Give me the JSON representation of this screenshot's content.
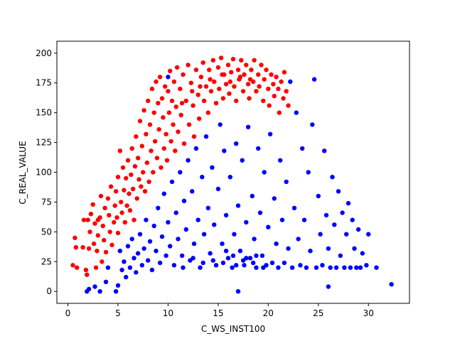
{
  "chart_data": {
    "type": "scatter",
    "title": "",
    "xlabel": "C_WS_INST100",
    "ylabel": "C_REAL_VALUE",
    "xlim": [
      -1.1,
      34.1
    ],
    "ylim": [
      -10,
      210
    ],
    "xticks": [
      0,
      5,
      10,
      15,
      20,
      25,
      30
    ],
    "yticks": [
      0,
      25,
      50,
      75,
      100,
      125,
      150,
      175,
      200
    ],
    "grid": false,
    "legend": "none",
    "series": [
      {
        "color": "#ff0000",
        "points": [
          [
            0.5,
            22
          ],
          [
            0.7,
            45
          ],
          [
            0.8,
            37
          ],
          [
            0.9,
            20
          ],
          [
            1.5,
            37
          ],
          [
            1.6,
            60
          ],
          [
            1.8,
            18
          ],
          [
            1.9,
            14
          ],
          [
            2.0,
            60
          ],
          [
            2.1,
            36
          ],
          [
            2.2,
            50
          ],
          [
            2.3,
            65
          ],
          [
            2.5,
            73
          ],
          [
            2.6,
            40
          ],
          [
            2.7,
            57
          ],
          [
            2.8,
            20
          ],
          [
            2.9,
            34
          ],
          [
            3.0,
            60
          ],
          [
            3.0,
            47
          ],
          [
            3.2,
            62
          ],
          [
            3.3,
            80
          ],
          [
            3.4,
            25
          ],
          [
            3.5,
            55
          ],
          [
            3.6,
            43
          ],
          [
            3.7,
            70
          ],
          [
            3.8,
            33
          ],
          [
            4.0,
            78
          ],
          [
            4.1,
            64
          ],
          [
            4.2,
            50
          ],
          [
            4.3,
            88
          ],
          [
            4.4,
            39
          ],
          [
            4.6,
            58
          ],
          [
            4.7,
            72
          ],
          [
            4.8,
            84
          ],
          [
            4.9,
            62
          ],
          [
            5.0,
            96
          ],
          [
            5.0,
            49
          ],
          [
            5.2,
            118
          ],
          [
            5.3,
            75
          ],
          [
            5.4,
            66
          ],
          [
            5.5,
            104
          ],
          [
            5.6,
            85
          ],
          [
            5.7,
            58
          ],
          [
            5.8,
            95
          ],
          [
            5.9,
            72
          ],
          [
            6.0,
            110
          ],
          [
            6.1,
            82
          ],
          [
            6.2,
            68
          ],
          [
            6.3,
            98
          ],
          [
            6.4,
            120
          ],
          [
            6.5,
            86
          ],
          [
            6.6,
            60
          ],
          [
            6.7,
            105
          ],
          [
            6.8,
            130
          ],
          [
            6.9,
            78
          ],
          [
            7.0,
            112
          ],
          [
            7.1,
            94
          ],
          [
            7.2,
            143
          ],
          [
            7.3,
            88
          ],
          [
            7.4,
            122
          ],
          [
            7.5,
            100
          ],
          [
            7.6,
            152
          ],
          [
            7.7,
            84
          ],
          [
            7.8,
            132
          ],
          [
            7.9,
            108
          ],
          [
            8.0,
            160
          ],
          [
            8.1,
            92
          ],
          [
            8.2,
            140
          ],
          [
            8.3,
            118
          ],
          [
            8.4,
            170
          ],
          [
            8.5,
            100
          ],
          [
            8.6,
            150
          ],
          [
            8.7,
            126
          ],
          [
            8.8,
            176
          ],
          [
            8.9,
            112
          ],
          [
            9.0,
            158
          ],
          [
            9.1,
            136
          ],
          [
            9.2,
            180
          ],
          [
            9.3,
            104
          ],
          [
            9.4,
            162
          ],
          [
            9.5,
            146
          ],
          [
            9.6,
            120
          ],
          [
            9.7,
            172
          ],
          [
            9.8,
            132
          ],
          [
            9.9,
            110
          ],
          [
            10.0,
            168
          ],
          [
            10.1,
            150
          ],
          [
            10.2,
            185
          ],
          [
            10.3,
            126
          ],
          [
            10.4,
            160
          ],
          [
            10.5,
            140
          ],
          [
            10.6,
            176
          ],
          [
            10.7,
            118
          ],
          [
            10.8,
            155
          ],
          [
            10.9,
            188
          ],
          [
            11.0,
            134
          ],
          [
            11.2,
            170
          ],
          [
            11.3,
            148
          ],
          [
            11.5,
            182
          ],
          [
            11.6,
            124
          ],
          [
            11.8,
            160
          ],
          [
            12.0,
            190
          ],
          [
            12.1,
            140
          ],
          [
            12.3,
            175
          ],
          [
            12.5,
            156
          ],
          [
            12.6,
            130
          ],
          [
            12.8,
            186
          ],
          [
            13.0,
            165
          ],
          [
            13.1,
            145
          ],
          [
            13.3,
            180
          ],
          [
            13.5,
            192
          ],
          [
            13.6,
            160
          ],
          [
            13.8,
            172
          ],
          [
            14.0,
            150
          ],
          [
            14.1,
            186
          ],
          [
            14.3,
            168
          ],
          [
            14.5,
            194
          ],
          [
            14.6,
            176
          ],
          [
            14.8,
            158
          ],
          [
            15.0,
            188
          ],
          [
            15.1,
            170
          ],
          [
            15.3,
            196
          ],
          [
            15.5,
            162
          ],
          [
            15.6,
            182
          ],
          [
            15.8,
            174
          ],
          [
            16.0,
            190
          ],
          [
            16.1,
            166
          ],
          [
            16.3,
            184
          ],
          [
            16.5,
            195
          ],
          [
            16.6,
            172
          ],
          [
            16.8,
            160
          ],
          [
            17.0,
            186
          ],
          [
            17.1,
            178
          ],
          [
            17.3,
            194
          ],
          [
            17.5,
            168
          ],
          [
            17.6,
            182
          ],
          [
            17.8,
            190
          ],
          [
            18.0,
            174
          ],
          [
            18.1,
            162
          ],
          [
            18.3,
            186
          ],
          [
            18.5,
            176
          ],
          [
            18.6,
            194
          ],
          [
            18.8,
            168
          ],
          [
            19.0,
            182
          ],
          [
            19.1,
            172
          ],
          [
            19.3,
            190
          ],
          [
            19.5,
            160
          ],
          [
            19.6,
            178
          ],
          [
            19.8,
            186
          ],
          [
            20.0,
            170
          ],
          [
            20.1,
            156
          ],
          [
            20.3,
            182
          ],
          [
            20.5,
            174
          ],
          [
            20.6,
            164
          ],
          [
            20.8,
            180
          ],
          [
            21.0,
            170
          ],
          [
            21.1,
            150
          ],
          [
            21.3,
            176
          ],
          [
            21.5,
            162
          ],
          [
            21.6,
            184
          ],
          [
            21.8,
            168
          ],
          [
            22.0,
            156
          ],
          [
            14.2,
            178
          ],
          [
            15.4,
            182
          ],
          [
            16.2,
            176
          ],
          [
            17.2,
            180
          ],
          [
            18.2,
            178
          ],
          [
            12.4,
            168
          ],
          [
            13.2,
            172
          ],
          [
            11.4,
            158
          ]
        ]
      },
      {
        "color": "#0000ff",
        "points": [
          [
            1.9,
            0
          ],
          [
            2.1,
            2
          ],
          [
            2.7,
            4
          ],
          [
            3.2,
            0
          ],
          [
            3.8,
            8
          ],
          [
            4.0,
            20
          ],
          [
            4.8,
            0
          ],
          [
            5.0,
            5
          ],
          [
            5.2,
            34
          ],
          [
            5.4,
            18
          ],
          [
            5.6,
            25
          ],
          [
            5.8,
            12
          ],
          [
            6.0,
            38
          ],
          [
            6.2,
            20
          ],
          [
            6.4,
            44
          ],
          [
            6.6,
            28
          ],
          [
            6.8,
            16
          ],
          [
            7.0,
            32
          ],
          [
            7.2,
            48
          ],
          [
            7.4,
            22
          ],
          [
            7.6,
            36
          ],
          [
            7.8,
            60
          ],
          [
            8.0,
            26
          ],
          [
            8.2,
            42
          ],
          [
            8.4,
            18
          ],
          [
            8.6,
            55
          ],
          [
            8.8,
            34
          ],
          [
            9.0,
            70
          ],
          [
            9.2,
            24
          ],
          [
            9.4,
            46
          ],
          [
            9.6,
            82
          ],
          [
            9.8,
            30
          ],
          [
            10.0,
            180
          ],
          [
            10.0,
            58
          ],
          [
            10.2,
            38
          ],
          [
            10.4,
            92
          ],
          [
            10.6,
            22
          ],
          [
            10.8,
            66
          ],
          [
            11.0,
            44
          ],
          [
            11.2,
            100
          ],
          [
            11.4,
            30
          ],
          [
            11.6,
            76
          ],
          [
            11.8,
            52
          ],
          [
            12.0,
            110
          ],
          [
            12.2,
            26
          ],
          [
            12.4,
            84
          ],
          [
            12.6,
            40
          ],
          [
            12.8,
            120
          ],
          [
            13.0,
            60
          ],
          [
            13.2,
            20
          ],
          [
            13.4,
            96
          ],
          [
            13.6,
            48
          ],
          [
            13.8,
            130
          ],
          [
            14.0,
            70
          ],
          [
            14.2,
            32
          ],
          [
            14.4,
            104
          ],
          [
            14.6,
            56
          ],
          [
            14.8,
            22
          ],
          [
            15.0,
            86
          ],
          [
            15.2,
            140
          ],
          [
            15.4,
            40
          ],
          [
            15.6,
            118
          ],
          [
            15.8,
            64
          ],
          [
            16.0,
            28
          ],
          [
            16.2,
            96
          ],
          [
            16.4,
            20
          ],
          [
            16.6,
            48
          ],
          [
            16.8,
            124
          ],
          [
            17.0,
            0
          ],
          [
            17.0,
            72
          ],
          [
            17.2,
            34
          ],
          [
            17.4,
            110
          ],
          [
            17.6,
            22
          ],
          [
            17.8,
            58
          ],
          [
            18.0,
            138
          ],
          [
            18.2,
            28
          ],
          [
            18.4,
            80
          ],
          [
            18.6,
            44
          ],
          [
            18.8,
            20
          ],
          [
            19.0,
            120
          ],
          [
            19.2,
            66
          ],
          [
            19.4,
            30
          ],
          [
            19.6,
            100
          ],
          [
            19.8,
            22
          ],
          [
            20.0,
            54
          ],
          [
            20.2,
            132
          ],
          [
            20.4,
            24
          ],
          [
            20.6,
            78
          ],
          [
            20.8,
            40
          ],
          [
            21.0,
            20
          ],
          [
            21.2,
            110
          ],
          [
            21.4,
            60
          ],
          [
            21.6,
            24
          ],
          [
            21.8,
            92
          ],
          [
            22.0,
            36
          ],
          [
            22.2,
            176
          ],
          [
            22.4,
            20
          ],
          [
            22.6,
            70
          ],
          [
            22.8,
            150
          ],
          [
            23.0,
            44
          ],
          [
            23.2,
            22
          ],
          [
            23.4,
            120
          ],
          [
            23.6,
            60
          ],
          [
            23.8,
            20
          ],
          [
            24.0,
            100
          ],
          [
            24.2,
            34
          ],
          [
            24.4,
            140
          ],
          [
            24.6,
            178
          ],
          [
            24.8,
            20
          ],
          [
            25.0,
            80
          ],
          [
            25.2,
            48
          ],
          [
            25.4,
            22
          ],
          [
            25.6,
            118
          ],
          [
            25.8,
            64
          ],
          [
            26.0,
            4
          ],
          [
            26.0,
            36
          ],
          [
            26.2,
            20
          ],
          [
            26.4,
            96
          ],
          [
            26.6,
            56
          ],
          [
            26.8,
            20
          ],
          [
            27.0,
            84
          ],
          [
            27.2,
            30
          ],
          [
            27.4,
            66
          ],
          [
            27.6,
            20
          ],
          [
            27.8,
            48
          ],
          [
            28.0,
            74
          ],
          [
            28.2,
            20
          ],
          [
            28.4,
            60
          ],
          [
            28.6,
            36
          ],
          [
            28.8,
            20
          ],
          [
            29.0,
            52
          ],
          [
            29.2,
            20
          ],
          [
            29.4,
            32
          ],
          [
            29.8,
            22
          ],
          [
            30.0,
            48
          ],
          [
            30.8,
            20
          ],
          [
            32.3,
            6
          ],
          [
            15.5,
            24
          ],
          [
            16.5,
            30
          ],
          [
            17.5,
            26
          ],
          [
            18.5,
            24
          ],
          [
            19.5,
            20
          ],
          [
            14.5,
            26
          ],
          [
            15.8,
            34
          ],
          [
            16.8,
            22
          ],
          [
            17.8,
            28
          ],
          [
            18.8,
            30
          ],
          [
            13.5,
            24
          ],
          [
            12.5,
            28
          ],
          [
            11.5,
            20
          ]
        ]
      }
    ]
  }
}
